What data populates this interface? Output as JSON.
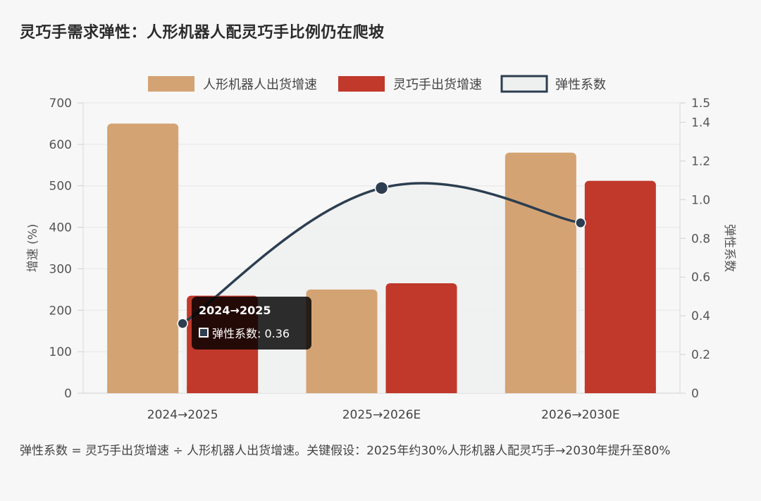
{
  "header": {
    "title": "灵巧手需求弹性：人形机器人配灵巧手比例仍在爬坡"
  },
  "footnote": "弹性系数 = 灵巧手出货增速 ÷ 人形机器人出货增速。关键假设：2025年约30%人形机器人配灵巧手→2030年提升至80%",
  "colors": {
    "series_a": "#d4a373",
    "series_b": "#c0392b",
    "line": "#2c3e50",
    "line_fill": "#eef0ef"
  },
  "tooltip": {
    "title": "2024→2025",
    "label": "弹性系数: 0.36"
  },
  "chart_data": {
    "type": "bar",
    "categories": [
      "2024→2025",
      "2025→2026E",
      "2026→2030E"
    ],
    "series": [
      {
        "name": "人形机器人出货增速",
        "type": "bar",
        "axis": "left",
        "values": [
          650,
          250,
          580
        ]
      },
      {
        "name": "灵巧手出货增速",
        "type": "bar",
        "axis": "left",
        "values": [
          235,
          265,
          512
        ]
      },
      {
        "name": "弹性系数",
        "type": "line",
        "axis": "right",
        "values": [
          0.36,
          1.06,
          0.88
        ]
      }
    ],
    "ylabel": "增速 (%)",
    "y2label": "弹性系数",
    "ylim": [
      0,
      700
    ],
    "y2lim": [
      0,
      1.5
    ],
    "yticks": [
      "0",
      "100",
      "200",
      "300",
      "400",
      "500",
      "600",
      "700"
    ],
    "y2ticks": [
      "0",
      "0.2",
      "0.4",
      "0.6",
      "0.8",
      "1.0",
      "1.2",
      "1.4",
      "1.5"
    ],
    "legend_position": "top-center",
    "grid": true
  }
}
